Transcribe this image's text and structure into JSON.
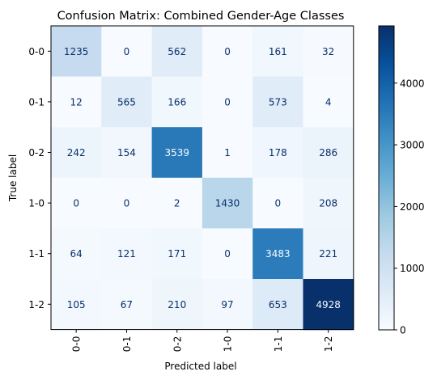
{
  "chart_data": {
    "type": "heatmap",
    "title": "Confusion Matrix: Combined Gender-Age Classes",
    "xlabel": "Predicted label",
    "ylabel": "True label",
    "x_categories": [
      "0-0",
      "0-1",
      "0-2",
      "1-0",
      "1-1",
      "1-2"
    ],
    "y_categories": [
      "0-0",
      "0-1",
      "0-2",
      "1-0",
      "1-1",
      "1-2"
    ],
    "values": [
      [
        1235,
        0,
        562,
        0,
        161,
        32
      ],
      [
        12,
        565,
        166,
        0,
        573,
        4
      ],
      [
        242,
        154,
        3539,
        1,
        178,
        286
      ],
      [
        0,
        0,
        2,
        1430,
        0,
        208
      ],
      [
        64,
        121,
        171,
        0,
        3483,
        221
      ],
      [
        105,
        67,
        210,
        97,
        653,
        4928
      ]
    ],
    "colormap": "Blues",
    "colorbar": {
      "min": 0,
      "max": 4928,
      "ticks": [
        0,
        1000,
        2000,
        3000,
        4000
      ],
      "tick_labels": [
        "0",
        "1000",
        "2000",
        "3000",
        "4000"
      ]
    },
    "colors": {
      "low": "#f7fbff",
      "high": "#08306b",
      "text_dark": "#08306b",
      "text_light": "#f7fbff"
    },
    "grid": false
  }
}
